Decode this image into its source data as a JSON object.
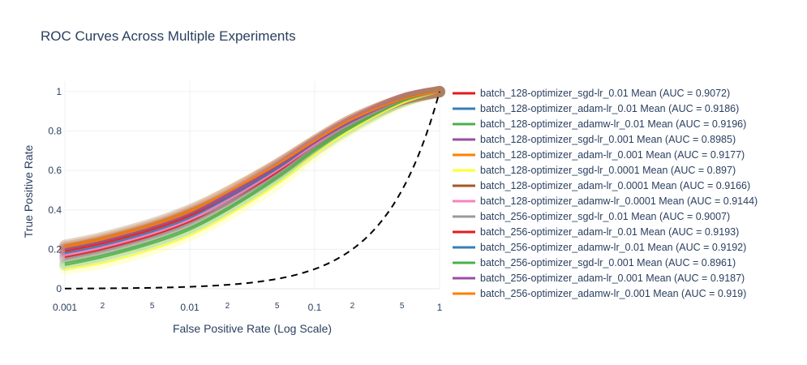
{
  "chart_data": {
    "type": "line",
    "title": "ROC Curves Across Multiple Experiments",
    "xlabel": "False Positive Rate (Log Scale)",
    "ylabel": "True Positive Rate",
    "x_scale": "log",
    "xlim": [
      0.001,
      1
    ],
    "ylim": [
      0,
      1
    ],
    "x_ticks": [
      {
        "value": 0.001,
        "label": "0.001",
        "major": true
      },
      {
        "value": 0.002,
        "label": "2",
        "major": false
      },
      {
        "value": 0.005,
        "label": "5",
        "major": false
      },
      {
        "value": 0.01,
        "label": "0.01",
        "major": true
      },
      {
        "value": 0.02,
        "label": "2",
        "major": false
      },
      {
        "value": 0.05,
        "label": "5",
        "major": false
      },
      {
        "value": 0.1,
        "label": "0.1",
        "major": true
      },
      {
        "value": 0.2,
        "label": "2",
        "major": false
      },
      {
        "value": 0.5,
        "label": "5",
        "major": false
      },
      {
        "value": 1,
        "label": "1",
        "major": true
      }
    ],
    "y_ticks": [
      {
        "value": 0,
        "label": "0"
      },
      {
        "value": 0.2,
        "label": "0.2"
      },
      {
        "value": 0.4,
        "label": "0.4"
      },
      {
        "value": 0.6,
        "label": "0.6"
      },
      {
        "value": 0.8,
        "label": "0.8"
      },
      {
        "value": 1,
        "label": "1"
      }
    ],
    "grid": true,
    "legend_position": "right",
    "x": [
      0.001,
      0.002,
      0.005,
      0.01,
      0.02,
      0.05,
      0.1,
      0.2,
      0.5,
      1
    ],
    "series": [
      {
        "name": "batch_128-optimizer_sgd-lr_0.01 Mean (AUC = 0.9072)",
        "color": "#e41a1c",
        "values": [
          0.16,
          0.2,
          0.27,
          0.34,
          0.43,
          0.59,
          0.72,
          0.84,
          0.96,
          1.0
        ]
      },
      {
        "name": "batch_128-optimizer_adam-lr_0.01 Mean (AUC = 0.9186)",
        "color": "#377eb8",
        "values": [
          0.22,
          0.26,
          0.33,
          0.4,
          0.49,
          0.63,
          0.75,
          0.86,
          0.96,
          1.0
        ]
      },
      {
        "name": "batch_128-optimizer_adamw-lr_0.01 Mean (AUC = 0.9196)",
        "color": "#4daf4a",
        "values": [
          0.13,
          0.17,
          0.24,
          0.31,
          0.41,
          0.57,
          0.71,
          0.83,
          0.95,
          1.0
        ]
      },
      {
        "name": "batch_128-optimizer_sgd-lr_0.001 Mean (AUC = 0.8985)",
        "color": "#984ea3",
        "values": [
          0.21,
          0.25,
          0.32,
          0.39,
          0.48,
          0.63,
          0.75,
          0.86,
          0.96,
          1.0
        ]
      },
      {
        "name": "batch_128-optimizer_adam-lr_0.001 Mean (AUC = 0.9177)",
        "color": "#ff7f00",
        "values": [
          0.22,
          0.26,
          0.33,
          0.4,
          0.49,
          0.63,
          0.75,
          0.86,
          0.96,
          1.0
        ]
      },
      {
        "name": "batch_128-optimizer_sgd-lr_0.0001 Mean (AUC = 0.897)",
        "color": "#ffff33",
        "values": [
          0.1,
          0.13,
          0.2,
          0.27,
          0.37,
          0.53,
          0.68,
          0.81,
          0.94,
          1.0
        ]
      },
      {
        "name": "batch_128-optimizer_adam-lr_0.0001 Mean (AUC = 0.9166)",
        "color": "#a65628",
        "values": [
          0.2,
          0.24,
          0.31,
          0.38,
          0.47,
          0.62,
          0.74,
          0.85,
          0.96,
          1.0
        ]
      },
      {
        "name": "batch_128-optimizer_adamw-lr_0.0001 Mean (AUC = 0.9144)",
        "color": "#f781bf",
        "values": [
          0.17,
          0.21,
          0.28,
          0.35,
          0.45,
          0.6,
          0.73,
          0.84,
          0.96,
          1.0
        ]
      },
      {
        "name": "batch_256-optimizer_sgd-lr_0.01 Mean (AUC = 0.9007)",
        "color": "#999999",
        "values": [
          0.15,
          0.19,
          0.26,
          0.33,
          0.43,
          0.58,
          0.72,
          0.84,
          0.95,
          1.0
        ]
      },
      {
        "name": "batch_256-optimizer_adam-lr_0.01 Mean (AUC = 0.9193)",
        "color": "#e41a1c",
        "values": [
          0.19,
          0.23,
          0.3,
          0.37,
          0.46,
          0.61,
          0.74,
          0.85,
          0.96,
          1.0
        ]
      },
      {
        "name": "batch_256-optimizer_adamw-lr_0.01 Mean (AUC = 0.9192)",
        "color": "#377eb8",
        "values": [
          0.18,
          0.22,
          0.29,
          0.36,
          0.46,
          0.61,
          0.74,
          0.85,
          0.96,
          1.0
        ]
      },
      {
        "name": "batch_256-optimizer_sgd-lr_0.001 Mean (AUC = 0.8961)",
        "color": "#4daf4a",
        "values": [
          0.12,
          0.16,
          0.23,
          0.3,
          0.4,
          0.56,
          0.7,
          0.82,
          0.95,
          1.0
        ]
      },
      {
        "name": "batch_256-optimizer_adam-lr_0.001 Mean (AUC = 0.9187)",
        "color": "#984ea3",
        "values": [
          0.2,
          0.24,
          0.31,
          0.38,
          0.47,
          0.62,
          0.74,
          0.85,
          0.96,
          1.0
        ]
      },
      {
        "name": "batch_256-optimizer_adamw-lr_0.001 Mean (AUC = 0.919)",
        "color": "#ff7f00",
        "values": [
          0.21,
          0.25,
          0.32,
          0.39,
          0.49,
          0.63,
          0.75,
          0.86,
          0.96,
          1.0
        ]
      }
    ],
    "reference_line": {
      "style": "dashed",
      "color": "#000000",
      "description": "random classifier y = x"
    }
  }
}
